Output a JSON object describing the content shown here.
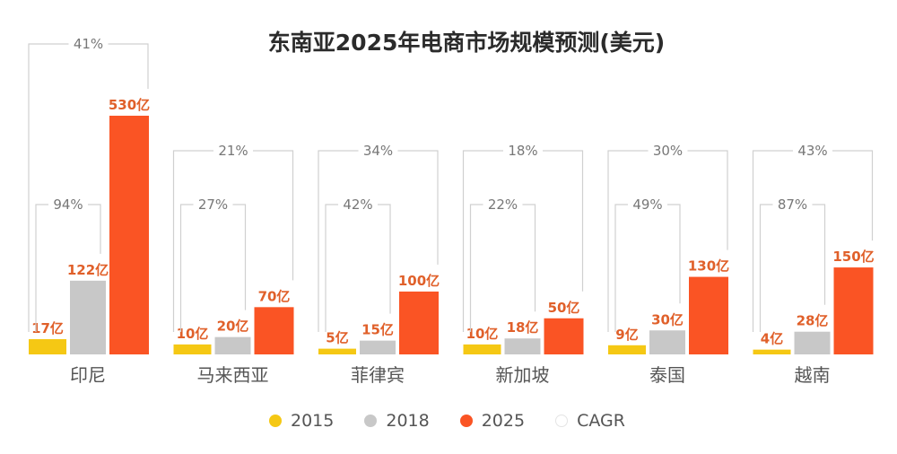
{
  "chart_data": {
    "type": "bar",
    "title": "东南亚2025年电商市场规模预测(美元)",
    "categories": [
      "印尼",
      "马来西亚",
      "菲律宾",
      "新加坡",
      "泰国",
      "越南"
    ],
    "series": [
      {
        "name": "2015",
        "color": "#f5c814",
        "values": [
          17,
          10,
          5,
          10,
          9,
          4
        ],
        "labels": [
          "17亿",
          "10亿",
          "5亿",
          "10亿",
          "9亿",
          "4亿"
        ]
      },
      {
        "name": "2018",
        "color": "#c8c8c8",
        "values": [
          122,
          20,
          15,
          18,
          30,
          28
        ],
        "labels": [
          "122亿",
          "20亿",
          "15亿",
          "18亿",
          "30亿",
          "28亿"
        ]
      },
      {
        "name": "2025",
        "color": "#fa5424",
        "values": [
          530,
          70,
          100,
          50,
          130,
          150
        ],
        "labels": [
          "530亿",
          "70亿",
          "100亿",
          "50亿",
          "130亿",
          "150亿"
        ]
      }
    ],
    "cagr": {
      "name": "CAGR",
      "2015_2018": [
        "94%",
        "27%",
        "42%",
        "22%",
        "49%",
        "87%"
      ],
      "2015_2025": [
        "41%",
        "21%",
        "34%",
        "18%",
        "30%",
        "43%"
      ]
    },
    "unit": "亿美元",
    "legend_position": "bottom",
    "grid": false,
    "label_color": "#e0602a"
  }
}
